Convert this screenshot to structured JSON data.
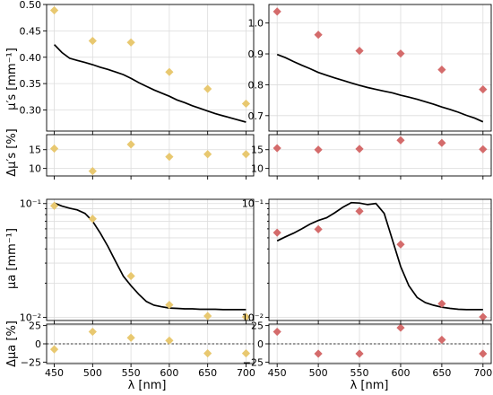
{
  "colors": {
    "yellow": "#e8c870",
    "red": "#d46b6b",
    "curve": "#000000"
  },
  "chart_data": {
    "type": "scatter",
    "x_ticks": [
      450,
      500,
      550,
      600,
      650,
      700
    ],
    "x_label": "λ [nm]",
    "panels": [
      {
        "id": "tl-main",
        "type": "line+scatter",
        "color": "yellow",
        "ylabel": "μ′s [mm⁻¹]",
        "yscale": "linear",
        "ylim": [
          0.26,
          0.5
        ],
        "yticks": [
          {
            "v": 0.3,
            "t": "0.30"
          },
          {
            "v": 0.35,
            "t": "0.35"
          },
          {
            "v": 0.4,
            "t": "0.40"
          },
          {
            "v": 0.45,
            "t": "0.45"
          },
          {
            "v": 0.5,
            "t": "0.50"
          }
        ],
        "points": {
          "x": [
            450,
            500,
            550,
            600,
            650,
            700
          ],
          "y": [
            0.489,
            0.431,
            0.428,
            0.372,
            0.34,
            0.312
          ]
        },
        "curve": {
          "x": [
            450,
            460,
            470,
            480,
            490,
            500,
            510,
            520,
            530,
            540,
            550,
            560,
            570,
            580,
            590,
            600,
            610,
            620,
            630,
            640,
            650,
            660,
            670,
            680,
            690,
            700
          ],
          "y": [
            0.424,
            0.409,
            0.398,
            0.394,
            0.39,
            0.386,
            0.381,
            0.377,
            0.372,
            0.367,
            0.36,
            0.352,
            0.345,
            0.338,
            0.332,
            0.326,
            0.319,
            0.314,
            0.308,
            0.303,
            0.298,
            0.293,
            0.289,
            0.285,
            0.281,
            0.277
          ]
        }
      },
      {
        "id": "tr-main",
        "type": "line+scatter",
        "color": "red",
        "ylabel": "",
        "yscale": "linear",
        "ylim": [
          0.65,
          1.06
        ],
        "yticks": [
          {
            "v": 0.7,
            "t": "0.7"
          },
          {
            "v": 0.8,
            "t": "0.8"
          },
          {
            "v": 0.9,
            "t": "0.9"
          },
          {
            "v": 1.0,
            "t": "1.0"
          }
        ],
        "points": {
          "x": [
            450,
            500,
            550,
            600,
            650,
            700
          ],
          "y": [
            1.037,
            0.962,
            0.91,
            0.901,
            0.849,
            0.785
          ]
        },
        "curve": {
          "x": [
            450,
            460,
            470,
            480,
            490,
            500,
            510,
            520,
            530,
            540,
            550,
            560,
            570,
            580,
            590,
            600,
            610,
            620,
            630,
            640,
            650,
            660,
            670,
            680,
            690,
            700
          ],
          "y": [
            0.898,
            0.888,
            0.875,
            0.863,
            0.852,
            0.84,
            0.831,
            0.822,
            0.814,
            0.806,
            0.798,
            0.791,
            0.785,
            0.779,
            0.774,
            0.766,
            0.76,
            0.753,
            0.745,
            0.737,
            0.728,
            0.72,
            0.711,
            0.701,
            0.692,
            0.68
          ]
        }
      },
      {
        "id": "tl-sub",
        "type": "scatter",
        "color": "yellow",
        "ylabel": "Δμ′s [%]",
        "yscale": "linear",
        "ylim": [
          8,
          19
        ],
        "yticks": [
          {
            "v": 10,
            "t": "10"
          },
          {
            "v": 15,
            "t": "15"
          }
        ],
        "points": {
          "x": [
            450,
            500,
            550,
            600,
            650,
            700
          ],
          "y": [
            15.3,
            9.3,
            16.4,
            13.1,
            13.8,
            13.8
          ]
        }
      },
      {
        "id": "tr-sub",
        "type": "scatter",
        "color": "red",
        "ylabel": "",
        "yscale": "linear",
        "ylim": [
          8,
          19
        ],
        "yticks": [
          {
            "v": 10,
            "t": "10"
          },
          {
            "v": 15,
            "t": "15"
          }
        ],
        "points": {
          "x": [
            450,
            500,
            550,
            600,
            650,
            700
          ],
          "y": [
            15.4,
            15.0,
            15.2,
            17.5,
            16.8,
            15.1
          ]
        }
      },
      {
        "id": "bl-main",
        "type": "line+scatter",
        "color": "yellow",
        "ylabel": "μa [mm⁻¹]",
        "yscale": "log",
        "ylim": [
          0.0094,
          0.109
        ],
        "yticks": [
          {
            "v": 0.01,
            "t": "10⁻²"
          },
          {
            "v": 0.1,
            "t": "10⁻¹"
          }
        ],
        "points": {
          "x": [
            450,
            500,
            550,
            600,
            650,
            700
          ],
          "y": [
            0.0955,
            0.0734,
            0.0231,
            0.0129,
            0.0103,
            0.0101
          ]
        },
        "curve": {
          "x": [
            450,
            460,
            470,
            480,
            490,
            500,
            510,
            520,
            530,
            540,
            550,
            560,
            570,
            580,
            590,
            600,
            610,
            620,
            630,
            640,
            650,
            660,
            670,
            680,
            690,
            700
          ],
          "y": [
            0.101,
            0.095,
            0.091,
            0.088,
            0.082,
            0.07,
            0.055,
            0.042,
            0.031,
            0.023,
            0.019,
            0.016,
            0.0138,
            0.0128,
            0.0124,
            0.0121,
            0.012,
            0.0119,
            0.0119,
            0.0118,
            0.0118,
            0.0118,
            0.0117,
            0.0117,
            0.0117,
            0.0117
          ]
        }
      },
      {
        "id": "br-main",
        "type": "line+scatter",
        "color": "red",
        "ylabel": "",
        "yscale": "log",
        "ylim": [
          0.0094,
          0.109
        ],
        "yticks": [
          {
            "v": 0.01,
            "t": "10⁻²"
          },
          {
            "v": 0.1,
            "t": "10⁻¹"
          }
        ],
        "points": {
          "x": [
            450,
            500,
            550,
            600,
            650,
            700
          ],
          "y": [
            0.0555,
            0.0595,
            0.0857,
            0.0438,
            0.0132,
            0.0101
          ]
        },
        "curve": {
          "x": [
            450,
            460,
            470,
            480,
            490,
            500,
            510,
            520,
            530,
            540,
            550,
            560,
            570,
            580,
            590,
            600,
            610,
            620,
            630,
            640,
            650,
            660,
            670,
            680,
            690,
            700
          ],
          "y": [
            0.047,
            0.051,
            0.055,
            0.06,
            0.066,
            0.071,
            0.075,
            0.083,
            0.093,
            0.102,
            0.101,
            0.098,
            0.1,
            0.082,
            0.048,
            0.028,
            0.019,
            0.015,
            0.0135,
            0.0128,
            0.0123,
            0.012,
            0.0118,
            0.0117,
            0.0117,
            0.0117
          ]
        }
      },
      {
        "id": "bl-sub",
        "type": "scatter",
        "color": "yellow",
        "ylabel": "Δμa [%]",
        "yscale": "linear",
        "ylim": [
          -27,
          27
        ],
        "yticks": [
          {
            "v": -25,
            "t": "−25"
          },
          {
            "v": 0,
            "t": "0"
          },
          {
            "v": 25,
            "t": "25"
          }
        ],
        "zero_line": true,
        "points": {
          "x": [
            450,
            500,
            550,
            600,
            650,
            700
          ],
          "y": [
            -7.5,
            16.5,
            8.3,
            4.5,
            -13.0,
            -13.0
          ]
        }
      },
      {
        "id": "br-sub",
        "type": "scatter",
        "color": "red",
        "ylabel": "",
        "yscale": "linear",
        "ylim": [
          -27,
          27
        ],
        "yticks": [
          {
            "v": -25,
            "t": "−25"
          },
          {
            "v": 0,
            "t": "0"
          },
          {
            "v": 25,
            "t": "25"
          }
        ],
        "zero_line": true,
        "points": {
          "x": [
            450,
            500,
            550,
            600,
            650,
            700
          ],
          "y": [
            16.5,
            -13.5,
            -13.5,
            22.0,
            5.5,
            -13.5
          ]
        }
      }
    ]
  }
}
